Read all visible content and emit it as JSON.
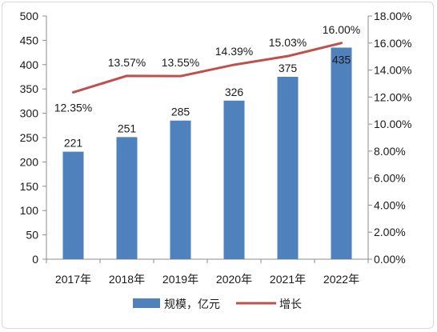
{
  "chart_data": {
    "type": "bar+line",
    "categories": [
      "2017年",
      "2018年",
      "2019年",
      "2020年",
      "2021年",
      "2022年"
    ],
    "series": [
      {
        "name": "规模，亿元",
        "type": "bar",
        "axis": "left",
        "values": [
          221,
          251,
          285,
          326,
          375,
          435
        ],
        "color": "#4f81bd"
      },
      {
        "name": "增长",
        "type": "line",
        "axis": "right",
        "values": [
          12.35,
          13.57,
          13.55,
          14.39,
          15.03,
          16.0
        ],
        "color": "#c0504d"
      }
    ],
    "bar_labels": [
      "221",
      "251",
      "285",
      "326",
      "375",
      "435"
    ],
    "line_labels": [
      "12.35%",
      "13.57%",
      "13.55%",
      "14.39%",
      "15.03%",
      "16.00%"
    ],
    "y_left": {
      "min": 0,
      "max": 500,
      "step": 50,
      "ticks": [
        "0",
        "50",
        "100",
        "150",
        "200",
        "250",
        "300",
        "350",
        "400",
        "450",
        "500"
      ]
    },
    "y_right": {
      "min": 0,
      "max": 18,
      "step": 2,
      "ticks": [
        "0.00%",
        "2.00%",
        "4.00%",
        "6.00%",
        "8.00%",
        "10.00%",
        "12.00%",
        "14.00%",
        "16.00%",
        "18.00%"
      ]
    },
    "legend_position": "bottom",
    "grid": false
  }
}
